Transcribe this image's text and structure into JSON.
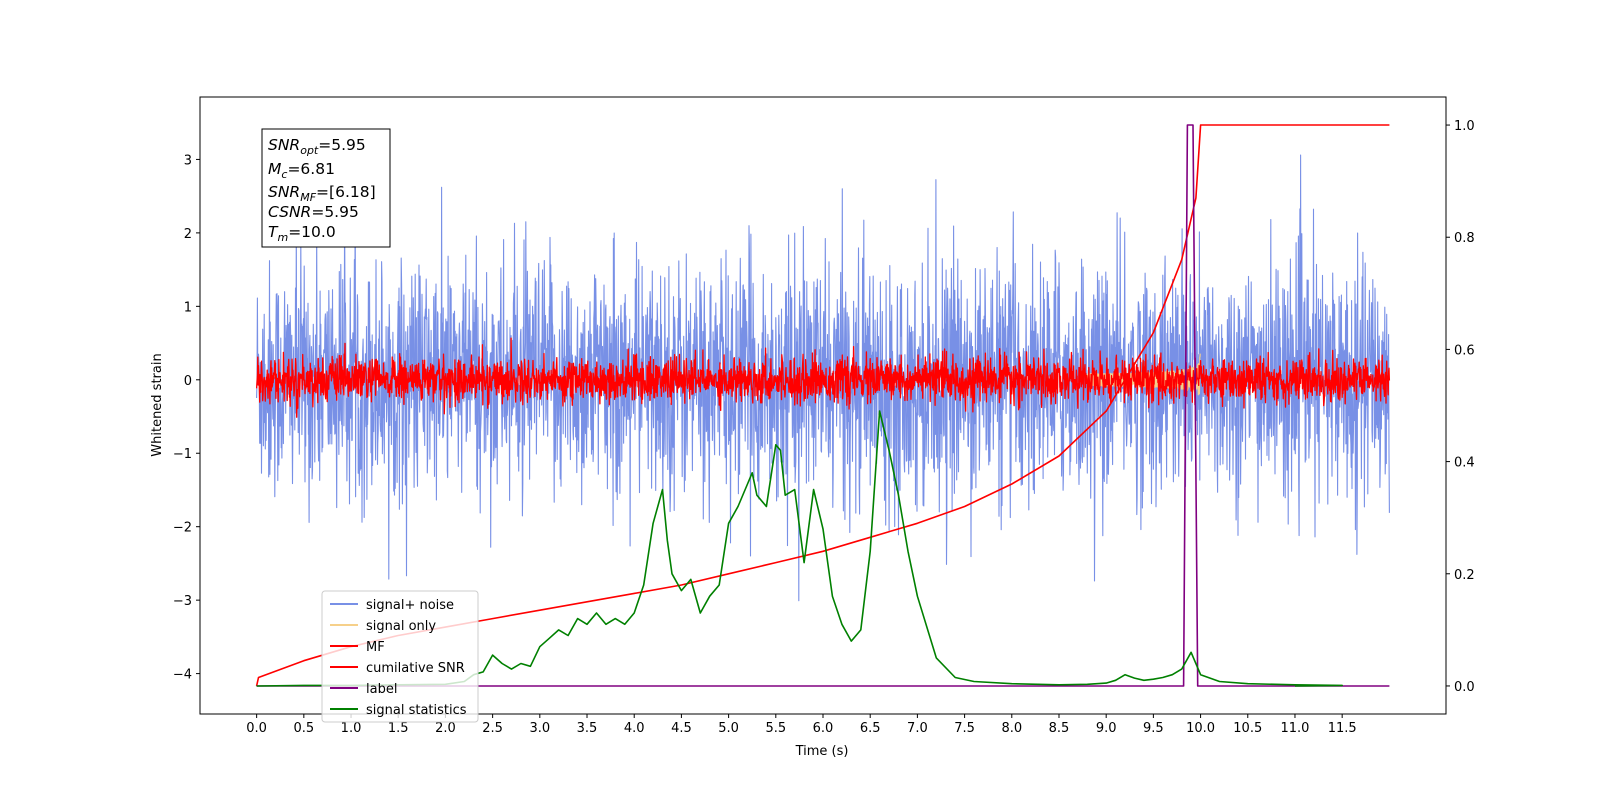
{
  "chart_data": {
    "type": "line",
    "xlabel": "Time (s)",
    "ylabel": "Whitened strain",
    "xlim": [
      -0.6,
      12.6
    ],
    "ylim": [
      -4.55,
      3.85
    ],
    "y2lim": [
      -0.05,
      1.05
    ],
    "x_ticks": [
      "0.0",
      "0.5",
      "1.0",
      "1.5",
      "2.0",
      "2.5",
      "3.0",
      "3.5",
      "4.0",
      "4.5",
      "5.0",
      "5.5",
      "6.0",
      "6.5",
      "7.0",
      "7.5",
      "8.0",
      "8.5",
      "9.0",
      "9.5",
      "10.0",
      "10.5",
      "11.0",
      "11.5"
    ],
    "y_ticks": [
      "3",
      "2",
      "1",
      "0",
      "−1",
      "−2",
      "−3",
      "−4"
    ],
    "y2_ticks": [
      "1.0",
      "0.8",
      "0.6",
      "0.4",
      "0.2",
      "0.0"
    ],
    "annotation": {
      "line1": {
        "var": "SNR",
        "sub": "opt",
        "val": "=5.95"
      },
      "line2": {
        "var": "M",
        "sub": "c",
        "val": "=6.81"
      },
      "line3": {
        "var": "SNR",
        "sub": "MF",
        "val": "=[6.18]"
      },
      "line4": {
        "var": "CSNR",
        "sub": "",
        "val": "=5.95"
      },
      "line5": {
        "var": "T",
        "sub": "m",
        "val": "=10.0"
      }
    },
    "legend": {
      "placement": "lower-left",
      "items": [
        {
          "label": "signal+ noise",
          "color": "#7890e6"
        },
        {
          "label": "signal only",
          "color": "#f6d08a"
        },
        {
          "label": "MF",
          "color": "#ff0000"
        },
        {
          "label": "cumilative SNR",
          "color": "#ff0000"
        },
        {
          "label": "label",
          "color": "#800080"
        },
        {
          "label": "signal statistics",
          "color": "#008000"
        }
      ]
    },
    "series": [
      {
        "name": "signal+ noise",
        "axis": "left",
        "kind": "noise",
        "t_range": [
          0,
          12
        ],
        "mean": 0,
        "std": 0.8,
        "color": "#7890e6"
      },
      {
        "name": "signal only",
        "axis": "left",
        "kind": "chirp",
        "t_merge": 10.0,
        "peak_amplitude": 0.35,
        "color": "#f6d08a"
      },
      {
        "name": "MF",
        "axis": "left",
        "kind": "noise",
        "t_range": [
          0,
          12
        ],
        "mean": 0,
        "std": 0.15,
        "color": "#ff0000"
      },
      {
        "name": "cumilative SNR",
        "axis": "right",
        "color": "#ff0000",
        "x": [
          0.0,
          0.02,
          0.5,
          1.0,
          1.5,
          2.0,
          2.5,
          3.0,
          3.5,
          4.0,
          4.5,
          5.0,
          5.5,
          6.0,
          6.5,
          7.0,
          7.5,
          8.0,
          8.5,
          9.0,
          9.5,
          9.8,
          9.95,
          10.0,
          12.0
        ],
        "y": [
          0.0,
          0.015,
          0.045,
          0.07,
          0.09,
          0.105,
          0.12,
          0.135,
          0.15,
          0.165,
          0.18,
          0.2,
          0.22,
          0.24,
          0.265,
          0.29,
          0.32,
          0.36,
          0.41,
          0.49,
          0.63,
          0.76,
          0.87,
          1.0,
          1.0
        ]
      },
      {
        "name": "label",
        "axis": "right",
        "color": "#800080",
        "x": [
          0.0,
          9.82,
          9.86,
          9.92,
          9.97,
          12.0
        ],
        "y": [
          0.0,
          0.0,
          1.0,
          1.0,
          0.0,
          0.0
        ]
      },
      {
        "name": "signal statistics",
        "axis": "right",
        "color": "#008000",
        "x": [
          0.0,
          0.5,
          1.0,
          1.5,
          2.0,
          2.2,
          2.3,
          2.4,
          2.5,
          2.6,
          2.7,
          2.8,
          2.9,
          3.0,
          3.1,
          3.2,
          3.3,
          3.4,
          3.5,
          3.6,
          3.7,
          3.8,
          3.9,
          4.0,
          4.1,
          4.2,
          4.3,
          4.35,
          4.4,
          4.5,
          4.6,
          4.7,
          4.8,
          4.9,
          5.0,
          5.1,
          5.2,
          5.25,
          5.3,
          5.4,
          5.5,
          5.55,
          5.6,
          5.7,
          5.8,
          5.9,
          6.0,
          6.1,
          6.2,
          6.3,
          6.4,
          6.5,
          6.6,
          6.7,
          6.8,
          6.9,
          7.0,
          7.2,
          7.4,
          7.6,
          8.0,
          8.5,
          8.8,
          9.0,
          9.1,
          9.2,
          9.3,
          9.4,
          9.5,
          9.6,
          9.7,
          9.8,
          9.9,
          10.0,
          10.2,
          10.5,
          11.0,
          11.5,
          11.0
        ],
        "y": [
          0.0,
          0.001,
          0.001,
          0.002,
          0.003,
          0.008,
          0.02,
          0.025,
          0.055,
          0.04,
          0.03,
          0.04,
          0.035,
          0.07,
          0.085,
          0.1,
          0.09,
          0.12,
          0.11,
          0.13,
          0.11,
          0.12,
          0.11,
          0.13,
          0.18,
          0.29,
          0.35,
          0.26,
          0.2,
          0.17,
          0.19,
          0.13,
          0.16,
          0.18,
          0.29,
          0.32,
          0.36,
          0.38,
          0.34,
          0.32,
          0.43,
          0.42,
          0.34,
          0.35,
          0.22,
          0.35,
          0.28,
          0.16,
          0.11,
          0.08,
          0.1,
          0.24,
          0.49,
          0.42,
          0.34,
          0.24,
          0.16,
          0.05,
          0.015,
          0.008,
          0.004,
          0.002,
          0.003,
          0.005,
          0.01,
          0.02,
          0.014,
          0.01,
          0.012,
          0.015,
          0.02,
          0.03,
          0.06,
          0.02,
          0.008,
          0.004,
          0.002,
          0.001,
          0.0
        ]
      }
    ]
  }
}
